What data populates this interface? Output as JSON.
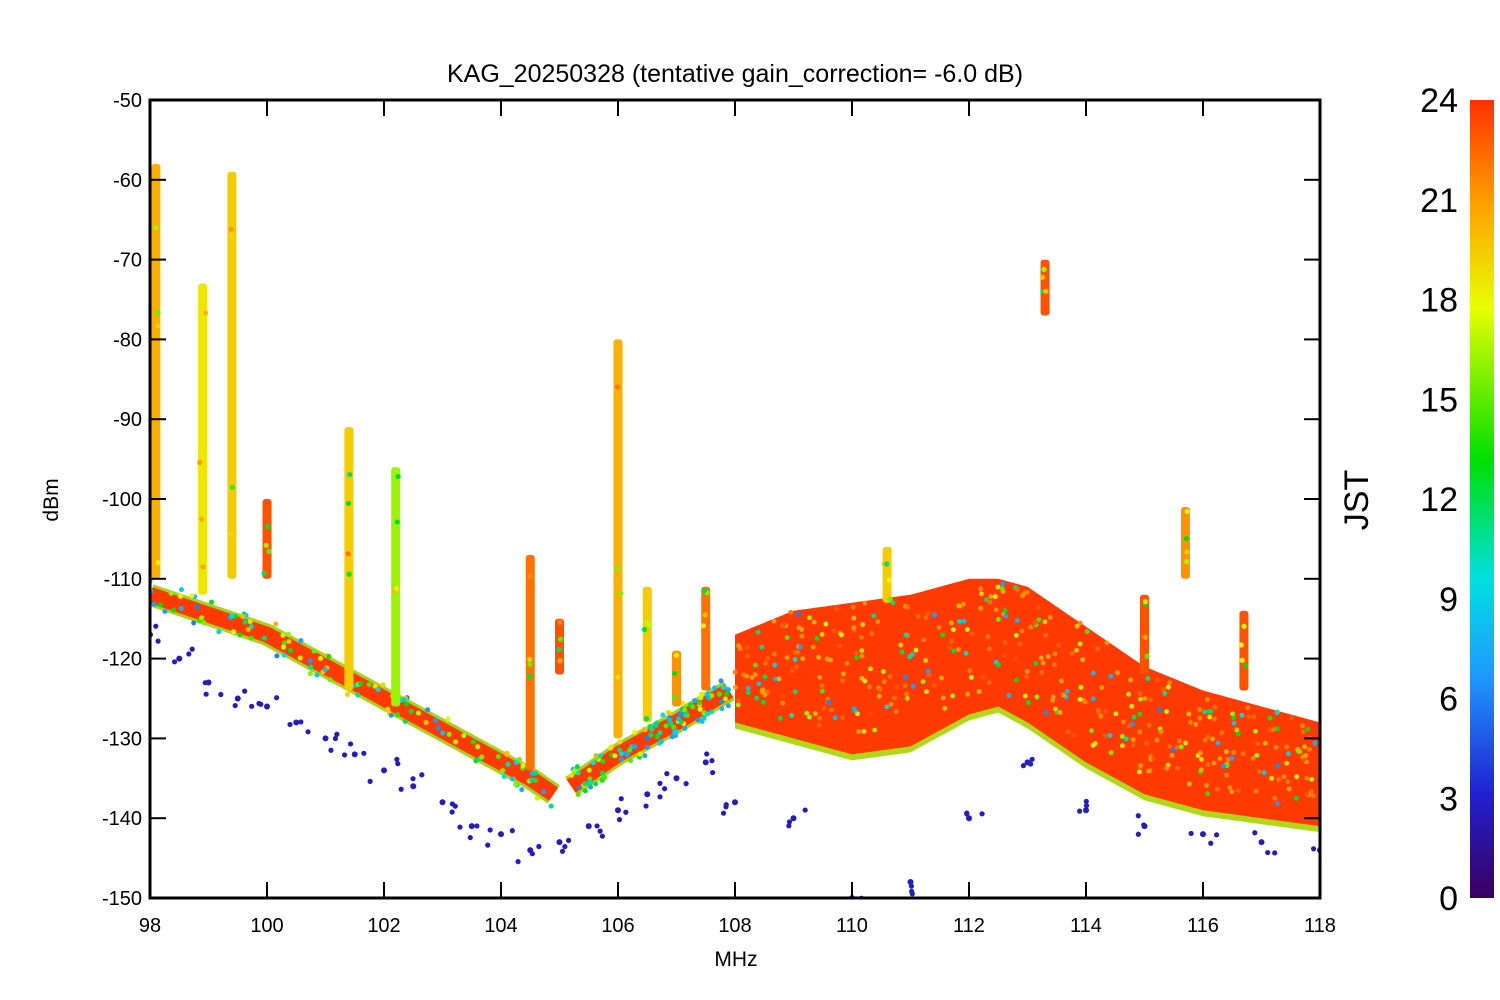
{
  "chart_data": {
    "type": "scatter",
    "title": "KAG_20250328 (tentative gain_correction= -6.0 dB)",
    "xlabel": "MHz",
    "ylabel": "dBm",
    "xlim": [
      98,
      118
    ],
    "ylim": [
      -150,
      -50
    ],
    "xticks": [
      98,
      100,
      102,
      104,
      106,
      108,
      110,
      112,
      114,
      116,
      118
    ],
    "yticks": [
      -50,
      -60,
      -70,
      -80,
      -90,
      -100,
      -110,
      -120,
      -130,
      -140,
      -150
    ],
    "grid": false,
    "colorbar": {
      "label": "JST",
      "range": [
        0,
        24
      ],
      "ticks": [
        0,
        3,
        6,
        9,
        12,
        15,
        18,
        21,
        24
      ],
      "colormap": "rainbow",
      "colors": [
        "#3a0060",
        "#2020d0",
        "#1f9aff",
        "#00e0e0",
        "#00e000",
        "#e8ff00",
        "#ffa000",
        "#ff3000"
      ]
    },
    "noise_floor": {
      "description_series": "dominant red traces (JST ~23)",
      "segments": [
        {
          "x": [
            98,
            100,
            102,
            103,
            104,
            104.5,
            104.9
          ],
          "y": [
            -112,
            -117,
            -125,
            -129,
            -133,
            -135,
            -137
          ]
        },
        {
          "x": [
            105.2,
            106,
            107,
            107.9
          ],
          "y": [
            -136,
            -132,
            -128,
            -124
          ]
        },
        {
          "x": [
            108,
            109,
            110,
            111,
            112,
            112.5,
            113,
            114,
            115,
            116,
            117,
            118
          ],
          "y_top": [
            -117,
            -114,
            -113,
            -112,
            -110,
            -110,
            -111,
            -116,
            -121,
            -124,
            -126,
            -128
          ],
          "y_bottom": [
            -128,
            -130,
            -132,
            -131,
            -127,
            -126,
            -128,
            -133,
            -137,
            -139,
            -140,
            -141
          ]
        }
      ]
    },
    "signals": [
      {
        "x": 98.1,
        "y_top": -58,
        "y_bottom": -110,
        "jst": 20
      },
      {
        "x": 98.9,
        "y_top": -73,
        "y_bottom": -112,
        "jst": 18
      },
      {
        "x": 99.4,
        "y_top": -59,
        "y_bottom": -110,
        "jst": 19
      },
      {
        "x": 100.0,
        "y_top": -100,
        "y_bottom": -110,
        "jst": 23
      },
      {
        "x": 101.4,
        "y_top": -91,
        "y_bottom": -124,
        "jst": 19
      },
      {
        "x": 102.2,
        "y_top": -96,
        "y_bottom": -126,
        "jst": 16
      },
      {
        "x": 104.5,
        "y_top": -107,
        "y_bottom": -134,
        "jst": 22
      },
      {
        "x": 105.0,
        "y_top": -115,
        "y_bottom": -122,
        "jst": 23
      },
      {
        "x": 106.0,
        "y_top": -80,
        "y_bottom": -130,
        "jst": 20
      },
      {
        "x": 106.5,
        "y_top": -111,
        "y_bottom": -128,
        "jst": 19
      },
      {
        "x": 107.0,
        "y_top": -119,
        "y_bottom": -126,
        "jst": 21
      },
      {
        "x": 107.5,
        "y_top": -111,
        "y_bottom": -124,
        "jst": 22
      },
      {
        "x": 110.6,
        "y_top": -106,
        "y_bottom": -113,
        "jst": 19
      },
      {
        "x": 113.3,
        "y_top": -70,
        "y_bottom": -77,
        "jst": 23
      },
      {
        "x": 115.0,
        "y_top": -112,
        "y_bottom": -122,
        "jst": 23
      },
      {
        "x": 115.7,
        "y_top": -101,
        "y_bottom": -110,
        "jst": 21
      },
      {
        "x": 116.7,
        "y_top": -114,
        "y_bottom": -124,
        "jst": 23
      }
    ],
    "low_outliers": {
      "jst": 3,
      "x": [
        98.0,
        98.5,
        99.0,
        99.5,
        100.0,
        100.5,
        101.0,
        101.5,
        102.0,
        102.5,
        103.0,
        103.5,
        104.0,
        104.5,
        105.0,
        105.5,
        106.0,
        106.5,
        107.0,
        107.5,
        108.0,
        109.0,
        110.0,
        111.0,
        112.0,
        113.0,
        114.0,
        115.0,
        116.0,
        117.0,
        118.0
      ],
      "y": [
        -117,
        -120,
        -123,
        -125,
        -126,
        -128,
        -130,
        -132,
        -134,
        -136,
        -138,
        -141,
        -142,
        -144,
        -143,
        -141,
        -139,
        -137,
        -135,
        -133,
        -138,
        -140,
        -150,
        -148,
        -140,
        -133,
        -139,
        -141,
        -142,
        -143,
        -144
      ]
    }
  }
}
